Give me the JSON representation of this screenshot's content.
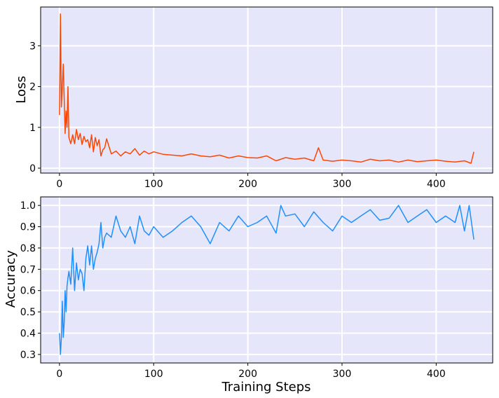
{
  "chart_data": [
    {
      "type": "line",
      "title": "",
      "xlabel": "",
      "ylabel": "Loss",
      "xlim": [
        -20,
        460
      ],
      "ylim": [
        -0.12,
        3.95
      ],
      "xticks": [
        0,
        100,
        200,
        300,
        400
      ],
      "xtick_labels": [
        "0",
        "100",
        "200",
        "300",
        "400"
      ],
      "yticks": [
        0,
        1,
        2,
        3
      ],
      "ytick_labels": [
        "0",
        "1",
        "2",
        "3"
      ],
      "grid": true,
      "background": "#e6e6fa",
      "series": [
        {
          "color": "#ff4500",
          "x": [
            0,
            1,
            2,
            3,
            4,
            5,
            6,
            7,
            8,
            9,
            10,
            12,
            14,
            16,
            18,
            20,
            22,
            24,
            26,
            28,
            30,
            32,
            34,
            36,
            38,
            40,
            42,
            44,
            46,
            48,
            50,
            55,
            60,
            65,
            70,
            75,
            80,
            85,
            90,
            95,
            100,
            110,
            120,
            130,
            140,
            150,
            160,
            170,
            180,
            190,
            200,
            210,
            220,
            230,
            240,
            250,
            260,
            270,
            275,
            280,
            290,
            300,
            310,
            320,
            330,
            340,
            350,
            360,
            370,
            380,
            390,
            400,
            410,
            420,
            430,
            437,
            440
          ],
          "values": [
            1.3,
            3.78,
            1.5,
            2.0,
            2.55,
            1.7,
            0.85,
            1.4,
            1.0,
            2.0,
            0.75,
            0.6,
            0.82,
            0.6,
            0.95,
            0.7,
            0.85,
            0.58,
            0.78,
            0.65,
            0.7,
            0.5,
            0.82,
            0.4,
            0.75,
            0.55,
            0.7,
            0.3,
            0.45,
            0.5,
            0.72,
            0.35,
            0.42,
            0.3,
            0.4,
            0.35,
            0.48,
            0.32,
            0.42,
            0.35,
            0.4,
            0.34,
            0.32,
            0.3,
            0.35,
            0.3,
            0.28,
            0.32,
            0.25,
            0.3,
            0.26,
            0.25,
            0.3,
            0.18,
            0.26,
            0.22,
            0.25,
            0.18,
            0.5,
            0.2,
            0.17,
            0.2,
            0.18,
            0.15,
            0.22,
            0.18,
            0.2,
            0.15,
            0.2,
            0.16,
            0.18,
            0.2,
            0.17,
            0.15,
            0.18,
            0.12,
            0.4
          ]
        }
      ]
    },
    {
      "type": "line",
      "title": "",
      "xlabel": "Training Steps",
      "ylabel": "Accuracy",
      "xlim": [
        -20,
        460
      ],
      "ylim": [
        0.26,
        1.04
      ],
      "xticks": [
        0,
        100,
        200,
        300,
        400
      ],
      "xtick_labels": [
        "0",
        "100",
        "200",
        "300",
        "400"
      ],
      "yticks": [
        0.3,
        0.4,
        0.5,
        0.6,
        0.7,
        0.8,
        0.9,
        1.0
      ],
      "ytick_labels": [
        "0.3",
        "0.4",
        "0.5",
        "0.6",
        "0.7",
        "0.8",
        "0.9",
        "1.0"
      ],
      "grid": true,
      "background": "#e6e6fa",
      "series": [
        {
          "color": "#1e90ff",
          "x": [
            0,
            1,
            2,
            3,
            4,
            5,
            6,
            7,
            8,
            9,
            10,
            12,
            14,
            16,
            18,
            20,
            22,
            24,
            26,
            28,
            30,
            32,
            34,
            36,
            38,
            40,
            42,
            44,
            46,
            48,
            50,
            55,
            60,
            65,
            70,
            75,
            80,
            85,
            90,
            95,
            100,
            110,
            120,
            130,
            140,
            150,
            160,
            170,
            180,
            190,
            200,
            210,
            220,
            230,
            235,
            240,
            250,
            260,
            270,
            280,
            290,
            300,
            310,
            320,
            330,
            340,
            350,
            360,
            370,
            380,
            390,
            400,
            410,
            420,
            425,
            430,
            435,
            440
          ],
          "values": [
            0.4,
            0.3,
            0.38,
            0.55,
            0.38,
            0.45,
            0.6,
            0.5,
            0.62,
            0.66,
            0.69,
            0.63,
            0.8,
            0.6,
            0.73,
            0.65,
            0.7,
            0.68,
            0.6,
            0.75,
            0.81,
            0.72,
            0.81,
            0.7,
            0.75,
            0.78,
            0.82,
            0.92,
            0.8,
            0.85,
            0.87,
            0.85,
            0.95,
            0.88,
            0.85,
            0.9,
            0.82,
            0.95,
            0.88,
            0.86,
            0.9,
            0.85,
            0.88,
            0.92,
            0.95,
            0.9,
            0.82,
            0.92,
            0.88,
            0.95,
            0.9,
            0.92,
            0.95,
            0.87,
            1.0,
            0.95,
            0.96,
            0.9,
            0.97,
            0.92,
            0.88,
            0.95,
            0.92,
            0.95,
            0.98,
            0.93,
            0.94,
            1.0,
            0.92,
            0.95,
            0.98,
            0.92,
            0.95,
            0.92,
            1.0,
            0.88,
            1.0,
            0.84
          ]
        }
      ]
    }
  ]
}
